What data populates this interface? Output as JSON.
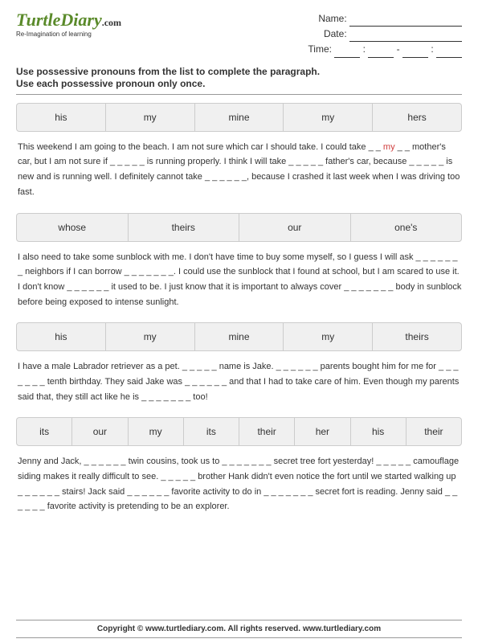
{
  "logo": {
    "name": "TurtleDiary",
    "suffix": ".com",
    "tagline": "Re-Imagination of learning"
  },
  "meta": {
    "name_label": "Name:",
    "date_label": "Date:",
    "time_label": "Time:"
  },
  "instructions": "Use possessive pronouns from the list to complete the paragraph.\nUse each possessive pronoun only once.",
  "sections": [
    {
      "bank": [
        "his",
        "my",
        "mine",
        "my",
        "hers"
      ],
      "text": "This weekend I am going to the beach. I am not sure which car I should take. I could take _ _ {my} _ _ mother's car, but I am not sure if  _ _ _ _ _ is running properly. I think I will take _ _ _ _ _ father's car, because _ _ _ _ _ is new and is running well. I definitely cannot take _ _ _ _ _ _, because I crashed it last week when I was driving too fast."
    },
    {
      "bank": [
        "whose",
        "theirs",
        "our",
        "one's"
      ],
      "text": "I also need to take some sunblock with me. I don't have time to buy some myself, so I guess I will ask _ _ _ _ _ _ _ neighbors if I can borrow _ _ _ _ _ _ _. I could use the sunblock that I found at school, but I am scared to use it. I don't know _ _ _ _ _ _ it used to be. I just know that it is important to always cover _ _ _ _ _ _ _ body in sunblock before being exposed to intense sunlight."
    },
    {
      "bank": [
        "his",
        "my",
        "mine",
        "my",
        "theirs"
      ],
      "text": "I have a male Labrador retriever as a pet. _ _ _ _ _ name is Jake. _ _ _ _ _ _ parents bought him for me for _ _ _ _ _ _ _ tenth birthday. They said Jake was _ _ _ _ _ _ and that I had to take care of him. Even though my parents said that, they still act like he is _ _ _ _ _ _ _ too!"
    },
    {
      "bank": [
        "its",
        "our",
        "my",
        "its",
        "their",
        "her",
        "his",
        "their"
      ],
      "text": "Jenny and Jack, _ _ _ _ _ _ twin cousins, took us to _ _ _ _ _ _ _ secret tree fort yesterday! _ _ _ _ _ camouflage siding makes it really difficult to see. _ _ _ _ _ brother Hank didn't even notice the fort until we started walking up _ _ _ _ _ _ stairs! Jack said _ _ _ _ _ _ favorite activity to do in _ _ _ _ _ _ _ secret fort is reading. Jenny said _ _ _ _ _ _ favorite activity is pretending to be an explorer."
    }
  ],
  "footer": "Copyright © www.turtlediary.com. All rights reserved. www.turtlediary.com"
}
